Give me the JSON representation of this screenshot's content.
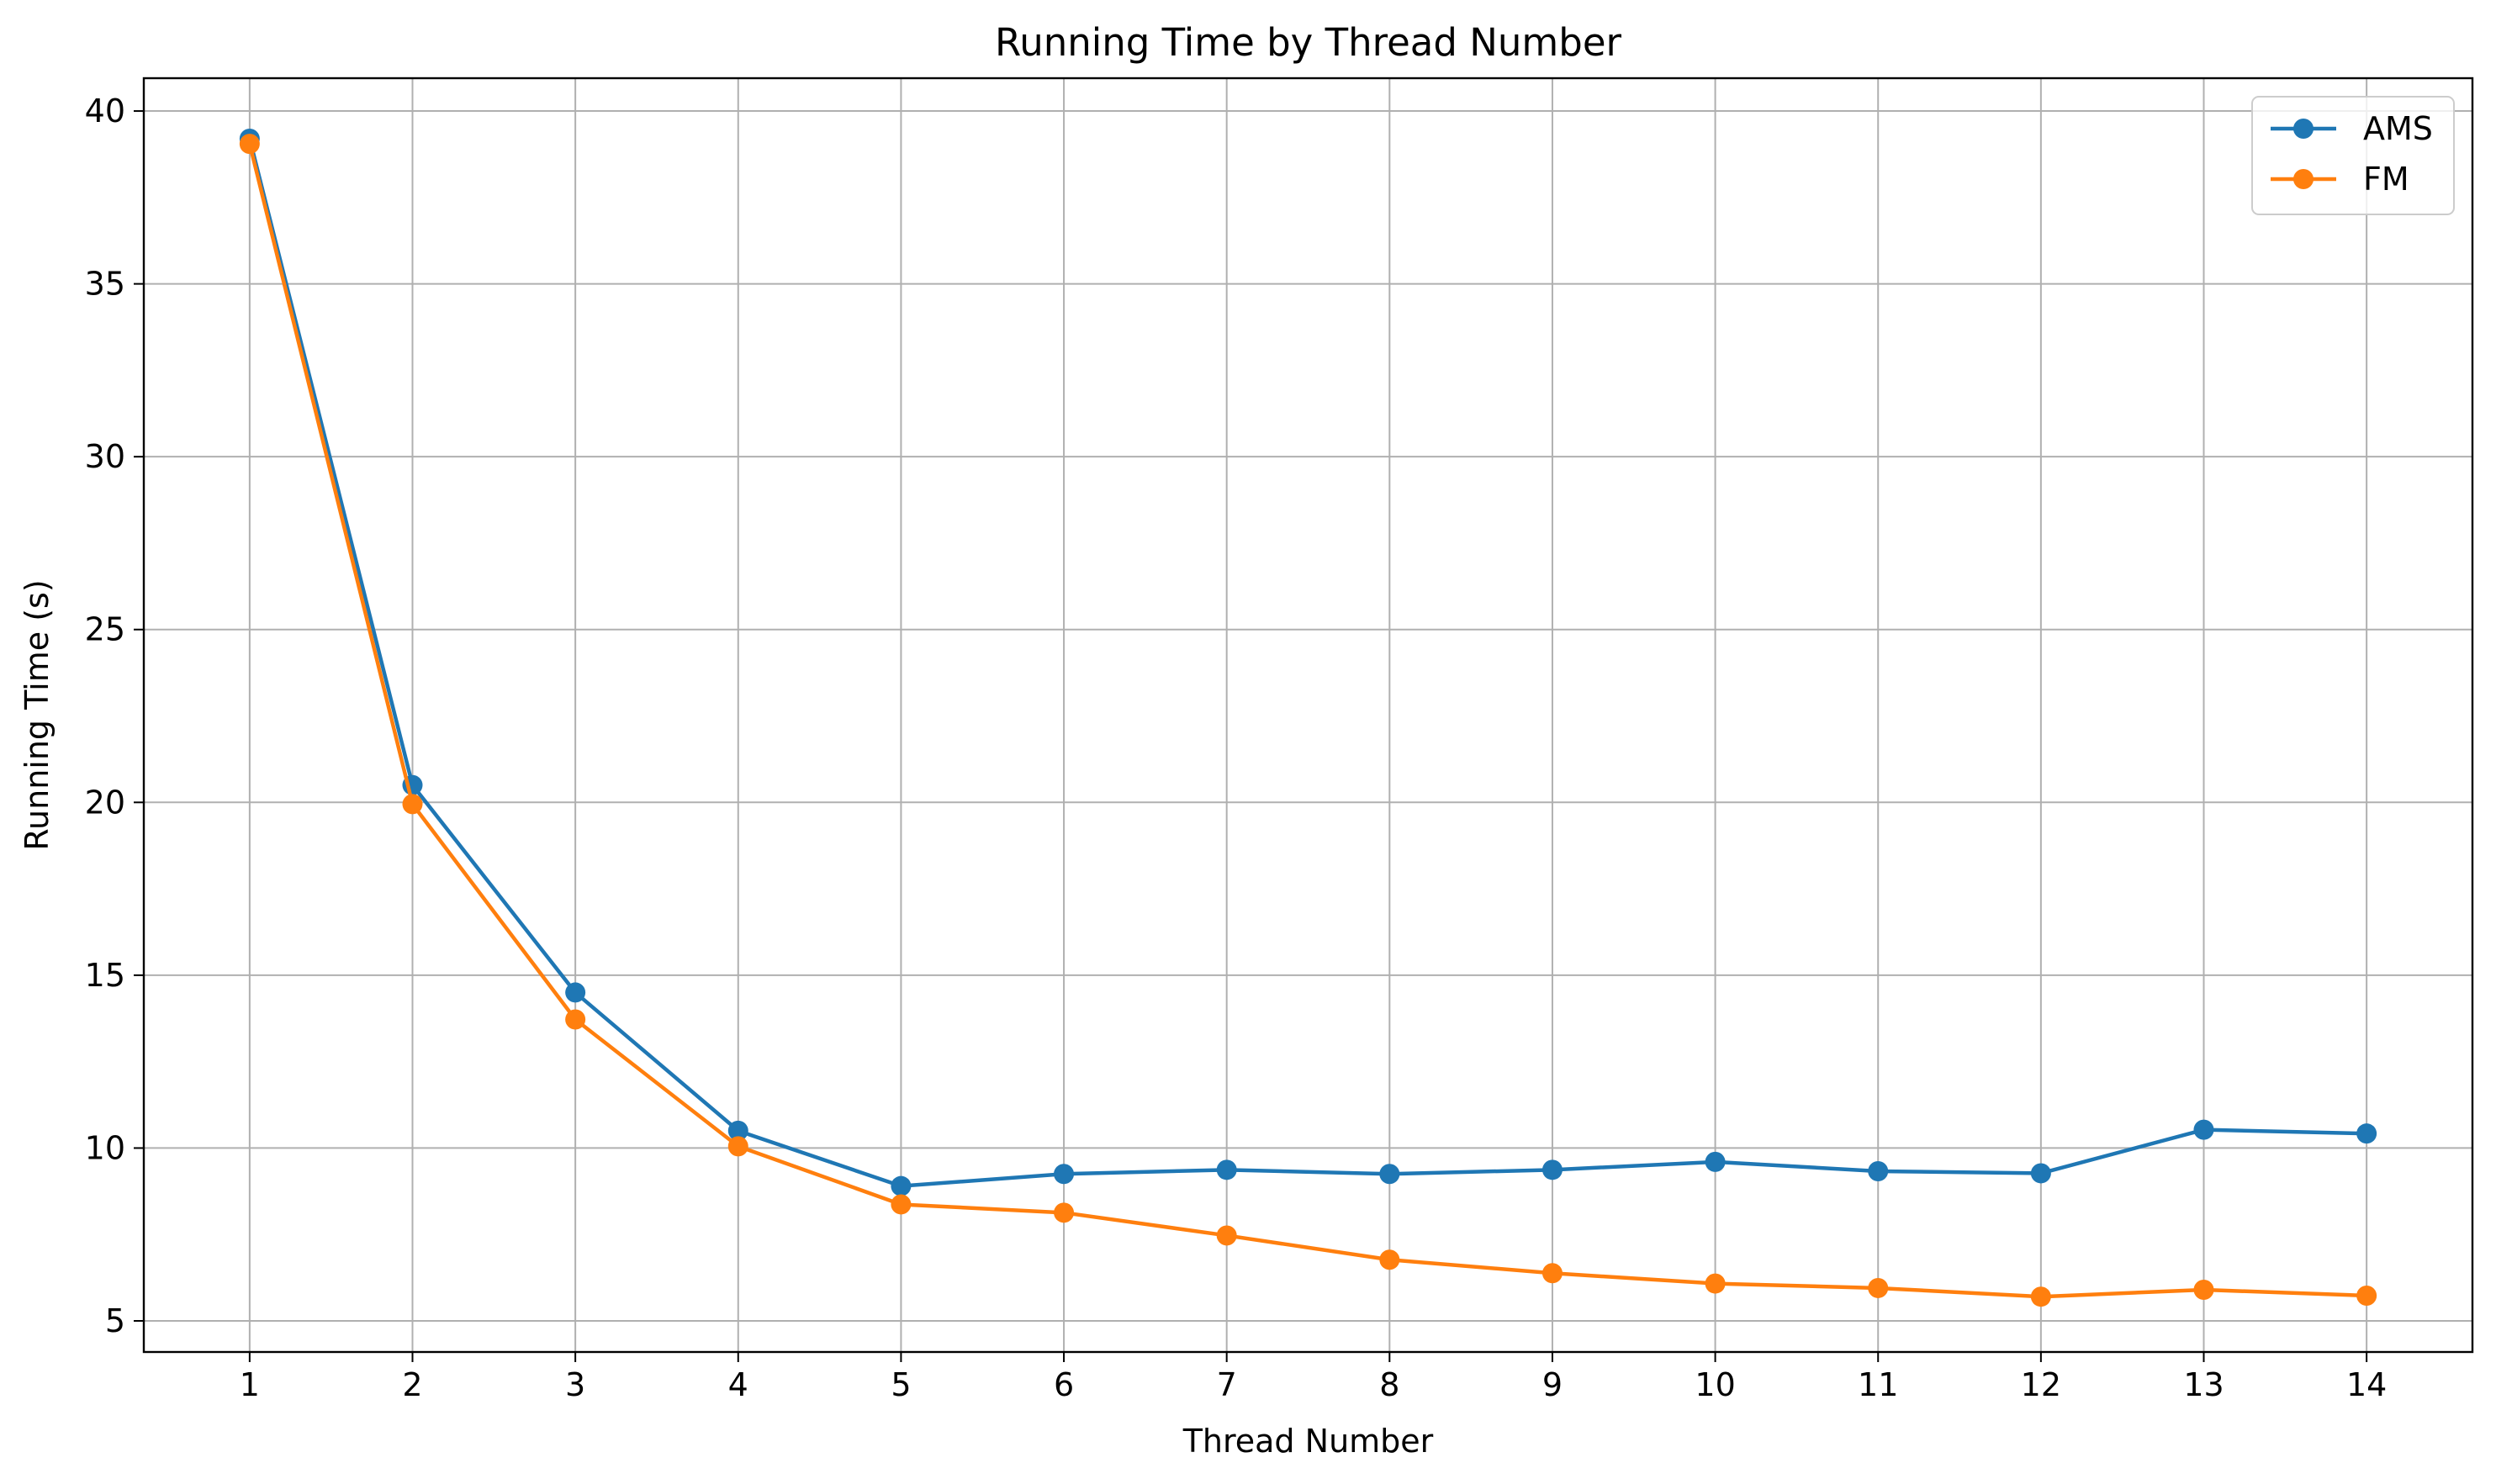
{
  "chart_data": {
    "type": "line",
    "title": "Running Time by Thread Number",
    "xlabel": "Thread Number",
    "ylabel": "Running Time (s)",
    "x": [
      1,
      2,
      3,
      4,
      5,
      6,
      7,
      8,
      9,
      10,
      11,
      12,
      13,
      14
    ],
    "xlim": [
      0.35,
      14.65
    ],
    "ylim": [
      4.1,
      40.95
    ],
    "yticks": [
      5,
      10,
      15,
      20,
      25,
      30,
      35,
      40
    ],
    "grid": true,
    "legend_position": "top-right",
    "series": [
      {
        "name": "AMS",
        "color": "#1f77b4",
        "marker": "circle",
        "values": [
          39.2,
          20.5,
          14.5,
          10.5,
          8.9,
          9.25,
          9.37,
          9.25,
          9.37,
          9.6,
          9.33,
          9.27,
          10.53,
          10.42
        ]
      },
      {
        "name": "FM",
        "color": "#ff7f0e",
        "marker": "circle",
        "values": [
          39.05,
          19.95,
          13.72,
          10.05,
          8.37,
          8.13,
          7.47,
          6.77,
          6.38,
          6.08,
          5.95,
          5.7,
          5.9,
          5.73
        ]
      }
    ]
  }
}
